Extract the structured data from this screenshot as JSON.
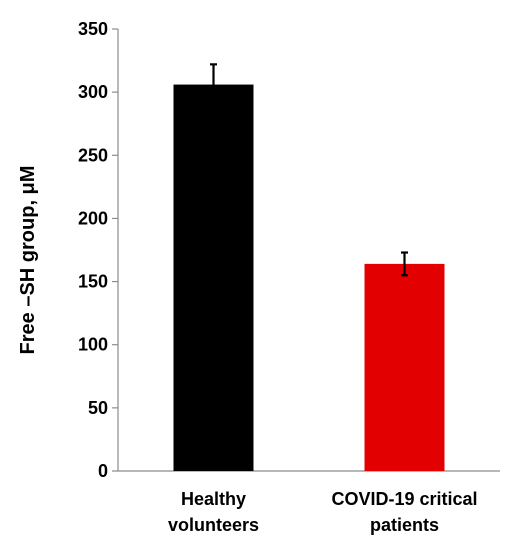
{
  "chart_data": {
    "type": "bar",
    "categories": [
      [
        "Healthy",
        "volunteers"
      ],
      [
        "COVID-19 critical",
        "patients"
      ]
    ],
    "values": [
      306,
      164
    ],
    "error": [
      16,
      9
    ],
    "colors": [
      "#000000",
      "#e30000"
    ],
    "ylabel": "Free –SH group, μM",
    "ylim": [
      0,
      350
    ],
    "yticks": [
      0,
      50,
      100,
      150,
      200,
      250,
      300,
      350
    ],
    "grid": false
  }
}
